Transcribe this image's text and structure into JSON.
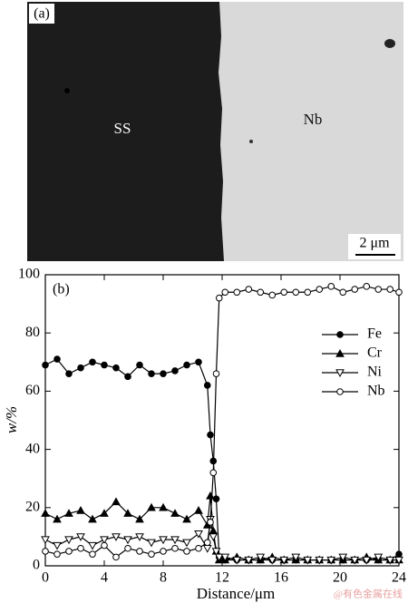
{
  "micrograph": {
    "label": "(a)",
    "regions": [
      "SS",
      "Nb"
    ],
    "scale_bar": "2 μm"
  },
  "chart_data": {
    "type": "line",
    "label": "(b)",
    "x_label": "Distance/μm",
    "y_label": "w/%",
    "x": [
      0,
      0.8,
      1.6,
      2.4,
      3.2,
      4.0,
      4.8,
      5.6,
      6.4,
      7.2,
      8.0,
      8.8,
      9.6,
      10.4,
      11.0,
      11.2,
      11.4,
      11.6,
      11.8,
      12.2,
      13.0,
      13.8,
      14.6,
      15.4,
      16.2,
      17.0,
      17.8,
      18.6,
      19.4,
      20.2,
      21.0,
      21.8,
      22.6,
      23.4,
      24.0
    ],
    "series": [
      {
        "name": "Fe",
        "color": "#000000",
        "marker": "circle-filled",
        "values": [
          69,
          71,
          66,
          68,
          70,
          69,
          68,
          65,
          69,
          66,
          66,
          67,
          69,
          70,
          62,
          45,
          36,
          23,
          3,
          2,
          2,
          2,
          2,
          2,
          2,
          2,
          2,
          2,
          2,
          2,
          2,
          2,
          2,
          2,
          4
        ]
      },
      {
        "name": "Cr",
        "color": "#000000",
        "marker": "triangle-up-filled",
        "values": [
          18,
          16,
          18,
          19,
          16,
          18,
          22,
          18,
          16,
          20,
          20,
          18,
          16,
          19,
          14,
          24,
          12,
          5,
          2,
          2,
          3,
          2,
          2,
          3,
          2,
          2,
          2,
          2,
          2,
          2,
          2,
          3,
          2,
          2,
          2
        ]
      },
      {
        "name": "Ni",
        "color": "#000000",
        "marker": "triangle-down-open",
        "values": [
          9,
          7,
          9,
          10,
          7,
          9,
          10,
          9,
          10,
          8,
          9,
          9,
          8,
          11,
          6,
          16,
          10,
          5,
          3,
          3,
          2,
          2,
          3,
          2,
          2,
          3,
          2,
          2,
          2,
          3,
          2,
          2,
          3,
          2,
          2
        ]
      },
      {
        "name": "Nb",
        "color": "#000000",
        "marker": "circle-open",
        "values": [
          5,
          4,
          5,
          6,
          4,
          7,
          3,
          6,
          5,
          4,
          5,
          6,
          5,
          6,
          8,
          15,
          32,
          66,
          92,
          94,
          94,
          95,
          94,
          93,
          94,
          94,
          94,
          95,
          96,
          94,
          95,
          96,
          95,
          95,
          94
        ]
      }
    ],
    "xlim": [
      0,
      24
    ],
    "xticks": [
      0,
      4,
      8,
      12,
      16,
      20,
      24
    ],
    "ylim": [
      0,
      100
    ],
    "yticks": [
      0,
      20,
      40,
      60,
      80,
      100
    ],
    "grid": false,
    "legend": "right"
  },
  "watermark": "@有色金属在线"
}
